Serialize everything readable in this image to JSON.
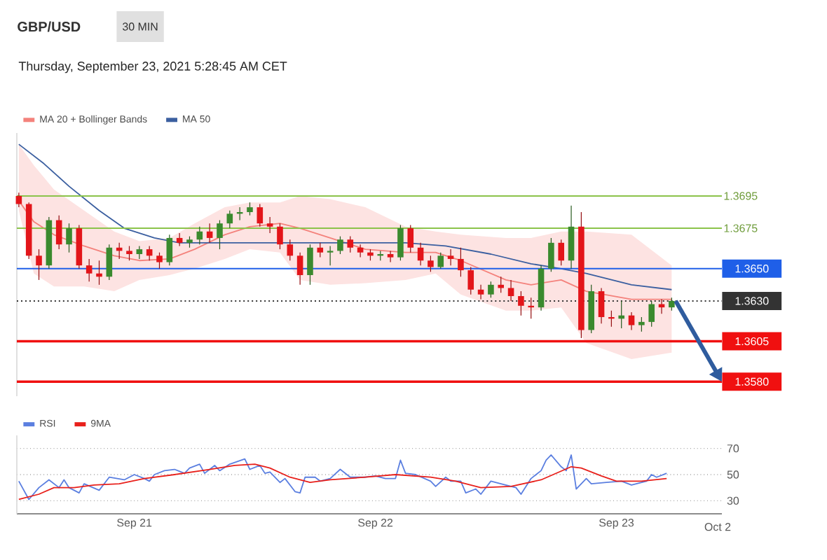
{
  "chart_data": [
    {
      "type": "candlestick",
      "title": "GBP/USD",
      "subtitle": "Thursday, September 23, 2021 5:28:45 AM CET",
      "annotations": [
        "30 MIN"
      ],
      "xlim": [
        "2021-09-20T12:18",
        "2021-09-23T10:30"
      ],
      "ylim": [
        1.3571,
        1.3734
      ],
      "legend": "top left",
      "series": [
        {
          "type": "candlestick",
          "colors": [
            "#e3151a",
            "#e3151a",
            "#e3151a",
            "#3a8a2e",
            "#e3151a",
            "#3a8a2e",
            "#e3151a",
            "#e3151a",
            "#e3151a",
            "#3a8a2e",
            "#e3151a",
            "#e3151a",
            "#3a8a2e",
            "#e3151a",
            "#e3151a",
            "#3a8a2e",
            "#e3151a",
            "#3a8a2e",
            "#3a8a2e",
            "#e3151a",
            "#3a8a2e",
            "#3a8a2e",
            "#3a8a2e",
            "#3a8a2e",
            "#e3151a",
            "#e3151a",
            "#e3151a",
            "#e3151a",
            "#e3151a",
            "#3a8a2e",
            "#e3151a",
            "#3a8a2e",
            "#3a8a2e",
            "#e3151a",
            "#e3151a",
            "#e3151a",
            "#3a8a2e",
            "#e3151a",
            "#3a8a2e",
            "#e3151a",
            "#e3151a",
            "#e3151a",
            "#3a8a2e",
            "#e3151a",
            "#e3151a",
            "#e3151a",
            "#e3151a",
            "#3a8a2e",
            "#e3151a",
            "#e3151a",
            "#e3151a",
            "#e3151a",
            "#3a8a2e",
            "#3a8a2e",
            "#e3151a",
            "#3a8a2e",
            "#e3151a",
            "#3a8a2e",
            "#e3151a",
            "#e3151a",
            "#3a8a2e",
            "#e3151a",
            "#3a8a2e",
            "#3a8a2e",
            "#e3151a",
            "#3a8a2e"
          ],
          "x": [
            "2021-09-20T12:30",
            "2021-09-20T13:30",
            "2021-09-20T14:30",
            "2021-09-20T15:30",
            "2021-09-20T16:30",
            "2021-09-20T17:30",
            "2021-09-20T18:30",
            "2021-09-20T19:30",
            "2021-09-20T20:30",
            "2021-09-20T21:30",
            "2021-09-20T22:30",
            "2021-09-20T23:30",
            "2021-09-21T00:30",
            "2021-09-21T01:30",
            "2021-09-21T02:30",
            "2021-09-21T03:30",
            "2021-09-21T04:30",
            "2021-09-21T05:30",
            "2021-09-21T06:30",
            "2021-09-21T07:30",
            "2021-09-21T08:30",
            "2021-09-21T09:30",
            "2021-09-21T10:30",
            "2021-09-21T11:30",
            "2021-09-21T12:30",
            "2021-09-21T13:30",
            "2021-09-21T14:30",
            "2021-09-21T15:30",
            "2021-09-21T16:30",
            "2021-09-21T17:30",
            "2021-09-21T18:30",
            "2021-09-21T19:30",
            "2021-09-21T20:30",
            "2021-09-21T21:30",
            "2021-09-21T22:30",
            "2021-09-21T23:30",
            "2021-09-22T00:30",
            "2021-09-22T01:30",
            "2021-09-22T02:30",
            "2021-09-22T03:30",
            "2021-09-22T04:30",
            "2021-09-22T05:30",
            "2021-09-22T06:30",
            "2021-09-22T07:30",
            "2021-09-22T08:30",
            "2021-09-22T09:30",
            "2021-09-22T10:30",
            "2021-09-22T11:30",
            "2021-09-22T12:30",
            "2021-09-22T13:30",
            "2021-09-22T14:30",
            "2021-09-22T15:30",
            "2021-09-22T16:30",
            "2021-09-22T17:30",
            "2021-09-22T18:30",
            "2021-09-22T19:30",
            "2021-09-22T20:30",
            "2021-09-22T21:30",
            "2021-09-22T22:30",
            "2021-09-22T23:30",
            "2021-09-23T00:30",
            "2021-09-23T01:30",
            "2021-09-23T02:30",
            "2021-09-23T03:30",
            "2021-09-23T04:30",
            "2021-09-23T05:30"
          ],
          "ohlc": [
            [
              1.3695,
              1.3697,
              1.3688,
              1.369
            ],
            [
              1.369,
              1.3691,
              1.3656,
              1.3658
            ],
            [
              1.3658,
              1.3662,
              1.3643,
              1.3652
            ],
            [
              1.3652,
              1.3682,
              1.365,
              1.368
            ],
            [
              1.368,
              1.3683,
              1.3662,
              1.3665
            ],
            [
              1.3665,
              1.3678,
              1.366,
              1.3675
            ],
            [
              1.3675,
              1.3677,
              1.365,
              1.3652
            ],
            [
              1.3652,
              1.3656,
              1.3642,
              1.3647
            ],
            [
              1.3647,
              1.3655,
              1.364,
              1.3645
            ],
            [
              1.3645,
              1.3665,
              1.3643,
              1.3663
            ],
            [
              1.3663,
              1.3666,
              1.3656,
              1.3661
            ],
            [
              1.3661,
              1.3664,
              1.3655,
              1.3659
            ],
            [
              1.3659,
              1.3664,
              1.3656,
              1.3662
            ],
            [
              1.3662,
              1.3664,
              1.3655,
              1.3658
            ],
            [
              1.3658,
              1.366,
              1.365,
              1.3654
            ],
            [
              1.3654,
              1.3671,
              1.3652,
              1.3669
            ],
            [
              1.3669,
              1.3672,
              1.3664,
              1.3666
            ],
            [
              1.3666,
              1.367,
              1.3663,
              1.3668
            ],
            [
              1.3668,
              1.3676,
              1.3665,
              1.3673
            ],
            [
              1.3673,
              1.3678,
              1.3666,
              1.3669
            ],
            [
              1.3669,
              1.368,
              1.3662,
              1.3678
            ],
            [
              1.3678,
              1.3686,
              1.3675,
              1.3684
            ],
            [
              1.3684,
              1.3688,
              1.368,
              1.3685
            ],
            [
              1.3685,
              1.3691,
              1.3683,
              1.3688
            ],
            [
              1.3688,
              1.369,
              1.3676,
              1.3678
            ],
            [
              1.3678,
              1.3682,
              1.3672,
              1.3676
            ],
            [
              1.3676,
              1.3678,
              1.3662,
              1.3665
            ],
            [
              1.3665,
              1.3668,
              1.3655,
              1.3658
            ],
            [
              1.3658,
              1.366,
              1.364,
              1.3646
            ],
            [
              1.3646,
              1.3665,
              1.364,
              1.3663
            ],
            [
              1.3663,
              1.3666,
              1.3657,
              1.366
            ],
            [
              1.366,
              1.3664,
              1.3652,
              1.3661
            ],
            [
              1.3661,
              1.367,
              1.3659,
              1.3668
            ],
            [
              1.3668,
              1.367,
              1.366,
              1.3663
            ],
            [
              1.3663,
              1.3665,
              1.3657,
              1.366
            ],
            [
              1.366,
              1.3662,
              1.3655,
              1.3658
            ],
            [
              1.3658,
              1.3661,
              1.3655,
              1.3659
            ],
            [
              1.3659,
              1.3661,
              1.3654,
              1.3657
            ],
            [
              1.3657,
              1.3677,
              1.3655,
              1.3675
            ],
            [
              1.3675,
              1.3677,
              1.366,
              1.3663
            ],
            [
              1.3663,
              1.3666,
              1.3652,
              1.3655
            ],
            [
              1.3655,
              1.3658,
              1.3648,
              1.3651
            ],
            [
              1.3651,
              1.366,
              1.365,
              1.3658
            ],
            [
              1.3658,
              1.3662,
              1.3652,
              1.3656
            ],
            [
              1.3656,
              1.3663,
              1.3645,
              1.3649
            ],
            [
              1.3649,
              1.3651,
              1.3634,
              1.3637
            ],
            [
              1.3637,
              1.364,
              1.3631,
              1.3634
            ],
            [
              1.3634,
              1.3642,
              1.3632,
              1.364
            ],
            [
              1.364,
              1.3645,
              1.3635,
              1.3638
            ],
            [
              1.3638,
              1.3643,
              1.363,
              1.3633
            ],
            [
              1.3633,
              1.3636,
              1.3621,
              1.3627
            ],
            [
              1.3627,
              1.3632,
              1.3619,
              1.3626
            ],
            [
              1.3626,
              1.3652,
              1.3624,
              1.365
            ],
            [
              1.365,
              1.3669,
              1.3648,
              1.3666
            ],
            [
              1.3666,
              1.3668,
              1.3652,
              1.3655
            ],
            [
              1.3655,
              1.3689,
              1.365,
              1.3676
            ],
            [
              1.3676,
              1.3685,
              1.3607,
              1.3612
            ],
            [
              1.3612,
              1.364,
              1.361,
              1.3636
            ],
            [
              1.3636,
              1.3638,
              1.3616,
              1.362
            ],
            [
              1.362,
              1.3624,
              1.3614,
              1.3619
            ],
            [
              1.3619,
              1.363,
              1.3613,
              1.3621
            ],
            [
              1.3621,
              1.3623,
              1.3612,
              1.3615
            ],
            [
              1.3615,
              1.362,
              1.3611,
              1.3617
            ],
            [
              1.3617,
              1.363,
              1.3614,
              1.3628
            ],
            [
              1.3628,
              1.3631,
              1.3622,
              1.3626
            ],
            [
              1.3626,
              1.3632,
              1.3624,
              1.363
            ]
          ]
        },
        {
          "type": "line",
          "name": "MA 20 + Bollinger Bands",
          "color": "#f4827c",
          "x": [
            "2021-09-20T12:30",
            "2021-09-20T14:00",
            "2021-09-20T16:00",
            "2021-09-20T19:00",
            "2021-09-20T22:00",
            "2021-09-21T00:30",
            "2021-09-21T03:30",
            "2021-09-21T06:00",
            "2021-09-21T09:00",
            "2021-09-21T11:30",
            "2021-09-21T14:30",
            "2021-09-21T16:30",
            "2021-09-21T19:30",
            "2021-09-21T23:00",
            "2021-09-22T03:00",
            "2021-09-22T06:00",
            "2021-09-22T08:30",
            "2021-09-22T13:00",
            "2021-09-22T15:30",
            "2021-09-22T18:30",
            "2021-09-22T21:00",
            "2021-09-23T01:30",
            "2021-09-23T05:30"
          ],
          "values": [
            1.3692,
            1.3679,
            1.3671,
            1.3664,
            1.3658,
            1.3655,
            1.3656,
            1.3662,
            1.3671,
            1.3676,
            1.3678,
            1.3675,
            1.3669,
            1.3662,
            1.366,
            1.366,
            1.3655,
            1.3643,
            1.364,
            1.3643,
            1.3636,
            1.3631,
            1.3631
          ],
          "upper": [
            1.3727,
            1.3714,
            1.3699,
            1.3686,
            1.3673,
            1.3667,
            1.3669,
            1.3678,
            1.3688,
            1.3691,
            1.3691,
            1.3695,
            1.3693,
            1.3688,
            1.3676,
            1.3673,
            1.3671,
            1.3669,
            1.3669,
            1.3673,
            1.3673,
            1.3671,
            1.3652
          ],
          "lower": [
            1.3686,
            1.3647,
            1.3639,
            1.3639,
            1.3636,
            1.3643,
            1.3646,
            1.365,
            1.3656,
            1.3662,
            1.366,
            1.3643,
            1.364,
            1.3641,
            1.3643,
            1.3647,
            1.3634,
            1.3624,
            1.3624,
            1.3626,
            1.3604,
            1.3594,
            1.3598
          ]
        },
        {
          "type": "line",
          "name": "MA 50",
          "color": "#3b5fa0",
          "x": [
            "2021-09-20T12:30",
            "2021-09-20T15:00",
            "2021-09-20T17:30",
            "2021-09-20T20:30",
            "2021-09-20T23:00",
            "2021-09-21T02:00",
            "2021-09-21T04:30",
            "2021-09-21T09:00",
            "2021-09-21T13:00",
            "2021-09-21T17:30",
            "2021-09-21T21:30",
            "2021-09-22T03:00",
            "2021-09-22T07:00",
            "2021-09-22T11:30",
            "2021-09-22T15:30",
            "2021-09-22T18:30",
            "2021-09-22T21:00",
            "2021-09-23T01:30",
            "2021-09-23T05:30"
          ],
          "values": [
            1.3727,
            1.3715,
            1.3701,
            1.3686,
            1.3675,
            1.3669,
            1.3666,
            1.3666,
            1.3666,
            1.3666,
            1.3666,
            1.3666,
            1.3664,
            1.3659,
            1.3653,
            1.365,
            1.3647,
            1.364,
            1.3637
          ]
        }
      ],
      "ref_lines": [
        {
          "axis": "y",
          "value": 1.3695,
          "label": "1.3695",
          "color": "#8bc34a",
          "line_style": "solid"
        },
        {
          "axis": "y",
          "value": 1.3675,
          "label": "1.3675",
          "color": "#8bc34a",
          "line_style": "solid"
        },
        {
          "axis": "y",
          "value": 1.365,
          "label": "1.3650",
          "color": "#1f5fe8",
          "line_style": "solid"
        },
        {
          "axis": "y",
          "value": 1.363,
          "label": "1.3630",
          "color": "#333333",
          "line_style": "dotted"
        },
        {
          "axis": "y",
          "value": 1.3605,
          "label": "1.3605",
          "color": "#f01010",
          "line_style": "solid"
        },
        {
          "axis": "y",
          "value": 1.358,
          "label": "1.3580",
          "color": "#f01010",
          "line_style": "solid"
        }
      ]
    },
    {
      "type": "line",
      "xlim": [
        "2021-09-20T12:18",
        "2021-09-23T10:30"
      ],
      "annotations": [
        "Oct 2"
      ],
      "ylim": [
        20,
        80
      ],
      "xticks": [
        {
          "value": "2021-09-21",
          "label": "Sep 21"
        },
        {
          "value": "2021-09-22",
          "label": "Sep 22"
        },
        {
          "value": "2021-09-23",
          "label": "Sep 23"
        }
      ],
      "yticks": [
        30,
        50,
        70
      ],
      "grid": "y",
      "legend": "top left",
      "series": [
        {
          "name": "RSI",
          "color": "#5b7fe0",
          "x": [
            "2021-09-20T12:30",
            "2021-09-20T13:30",
            "2021-09-20T14:30",
            "2021-09-20T15:30",
            "2021-09-20T16:30",
            "2021-09-20T17:00",
            "2021-09-20T17:30",
            "2021-09-20T18:30",
            "2021-09-20T19:00",
            "2021-09-20T20:30",
            "2021-09-20T21:30",
            "2021-09-20T23:00",
            "2021-09-21T00:00",
            "2021-09-21T01:00",
            "2021-09-21T01:30",
            "2021-09-21T02:00",
            "2021-09-21T03:00",
            "2021-09-21T04:00",
            "2021-09-21T05:00",
            "2021-09-21T05:30",
            "2021-09-21T06:30",
            "2021-09-21T07:00",
            "2021-09-21T08:00",
            "2021-09-21T08:30",
            "2021-09-21T09:30",
            "2021-09-21T11:00",
            "2021-09-21T11:30",
            "2021-09-21T12:30",
            "2021-09-21T13:00",
            "2021-09-21T13:30",
            "2021-09-21T14:30",
            "2021-09-21T15:00",
            "2021-09-21T16:00",
            "2021-09-21T16:30",
            "2021-09-21T17:00",
            "2021-09-21T18:00",
            "2021-09-21T18:30",
            "2021-09-21T19:30",
            "2021-09-21T20:30",
            "2021-09-21T21:30",
            "2021-09-21T23:00",
            "2021-09-22T00:00",
            "2021-09-22T01:00",
            "2021-09-22T02:00",
            "2021-09-22T02:30",
            "2021-09-22T03:00",
            "2021-09-22T04:00",
            "2021-09-22T05:30",
            "2021-09-22T06:00",
            "2021-09-22T07:00",
            "2021-09-22T07:30",
            "2021-09-22T08:30",
            "2021-09-22T09:00",
            "2021-09-22T10:00",
            "2021-09-22T10:30",
            "2021-09-22T11:30",
            "2021-09-22T12:30",
            "2021-09-22T14:00",
            "2021-09-22T14:30",
            "2021-09-22T15:30",
            "2021-09-22T16:30",
            "2021-09-22T17:00",
            "2021-09-22T17:30",
            "2021-09-22T18:30",
            "2021-09-22T19:00",
            "2021-09-22T19:30",
            "2021-09-22T20:00",
            "2021-09-22T21:00",
            "2021-09-22T21:30",
            "2021-09-22T23:00",
            "2021-09-23T00:30",
            "2021-09-23T01:30",
            "2021-09-23T03:00",
            "2021-09-23T03:30",
            "2021-09-23T04:00",
            "2021-09-23T05:00"
          ],
          "values": [
            45,
            31,
            40,
            46,
            40,
            46,
            40,
            36,
            43,
            38,
            48,
            46,
            50,
            47,
            45,
            50,
            53,
            54,
            51,
            55,
            58,
            51,
            57,
            53,
            58,
            62,
            54,
            57,
            51,
            52,
            44,
            47,
            37,
            36,
            48,
            48,
            45,
            47,
            54,
            48,
            48,
            49,
            47,
            47,
            61,
            51,
            50,
            45,
            41,
            48,
            45,
            45,
            36,
            39,
            35,
            45,
            43,
            40,
            35,
            47,
            53,
            61,
            65,
            56,
            53,
            65,
            39,
            47,
            43,
            44,
            45,
            42,
            45,
            50,
            48,
            51
          ]
        },
        {
          "name": "9MA",
          "color": "#e8201b",
          "x": [
            "2021-09-20T12:30",
            "2021-09-20T14:30",
            "2021-09-20T16:00",
            "2021-09-20T18:00",
            "2021-09-20T20:00",
            "2021-09-20T22:30",
            "2021-09-21T01:00",
            "2021-09-21T04:00",
            "2021-09-21T07:30",
            "2021-09-21T10:00",
            "2021-09-21T12:00",
            "2021-09-21T13:30",
            "2021-09-21T15:30",
            "2021-09-21T17:30",
            "2021-09-21T19:30",
            "2021-09-21T23:00",
            "2021-09-22T02:00",
            "2021-09-22T05:30",
            "2021-09-22T08:00",
            "2021-09-22T10:30",
            "2021-09-22T13:30",
            "2021-09-22T16:30",
            "2021-09-22T19:30",
            "2021-09-22T20:30",
            "2021-09-22T22:30",
            "2021-09-23T00:00",
            "2021-09-23T02:30",
            "2021-09-23T05:00"
          ],
          "values": [
            31,
            35,
            40,
            40,
            42,
            43,
            47,
            50,
            54,
            57,
            58,
            55,
            48,
            44,
            46,
            48,
            50,
            48,
            45,
            40,
            41,
            46,
            56,
            55,
            49,
            45,
            45,
            47
          ]
        }
      ]
    }
  ]
}
